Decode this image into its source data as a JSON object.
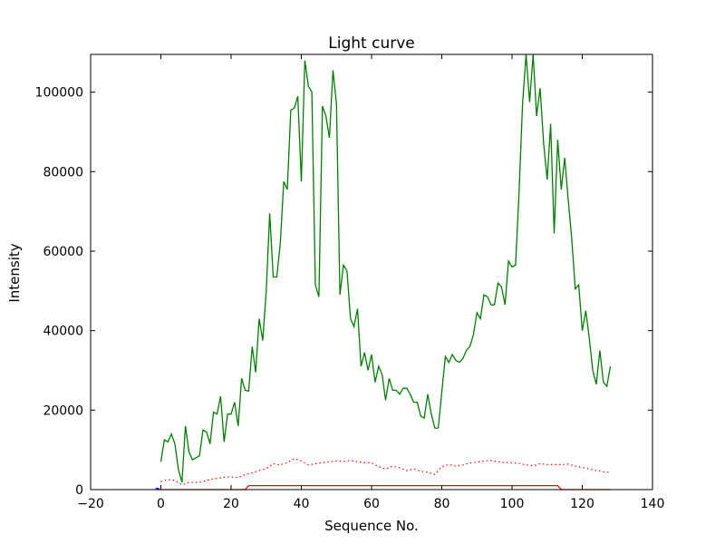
{
  "chart_data": {
    "type": "line",
    "title": "Light curve",
    "xlabel": "Sequence No.",
    "ylabel": "Intensity",
    "xlim": [
      -20,
      140
    ],
    "ylim": [
      0,
      109500
    ],
    "xticks": [
      -20,
      0,
      20,
      40,
      60,
      80,
      100,
      120,
      140
    ],
    "yticks": [
      0,
      20000,
      40000,
      60000,
      80000,
      100000
    ],
    "grid": false,
    "series": [
      {
        "color": "#008000",
        "style": "solid",
        "x": [
          0,
          1,
          2,
          3,
          4,
          5,
          6,
          7,
          8,
          9,
          10,
          11,
          12,
          13,
          14,
          15,
          16,
          17,
          18,
          19,
          20,
          21,
          22,
          23,
          24,
          25,
          26,
          27,
          28,
          29,
          30,
          31,
          32,
          33,
          34,
          35,
          36,
          37,
          38,
          39,
          40,
          41,
          42,
          43,
          44,
          45,
          46,
          47,
          48,
          49,
          50,
          51,
          52,
          53,
          54,
          55,
          56,
          57,
          58,
          59,
          60,
          61,
          62,
          63,
          64,
          65,
          66,
          67,
          68,
          69,
          70,
          71,
          72,
          73,
          74,
          75,
          76,
          77,
          78,
          79,
          80,
          81,
          82,
          83,
          84,
          85,
          86,
          87,
          88,
          89,
          90,
          91,
          92,
          93,
          94,
          95,
          96,
          97,
          98,
          99,
          100,
          101,
          102,
          103,
          104,
          105,
          106,
          107,
          108,
          109,
          110,
          111,
          112,
          113,
          114,
          115,
          116,
          117,
          118,
          119,
          120,
          121,
          122,
          123,
          124,
          125,
          126,
          127,
          128
        ],
        "y": [
          7000,
          12500,
          12000,
          14000,
          11500,
          5000,
          1800,
          16000,
          9500,
          7500,
          8000,
          8500,
          15000,
          14500,
          11500,
          19500,
          19000,
          23500,
          12000,
          19000,
          19000,
          22000,
          16000,
          28000,
          25000,
          24800,
          36000,
          29500,
          43000,
          37500,
          50000,
          69500,
          53500,
          53500,
          62000,
          77500,
          75500,
          95500,
          96000,
          99000,
          77500,
          108000,
          101500,
          100000,
          51500,
          48500,
          96500,
          94000,
          88500,
          105500,
          97000,
          49000,
          56500,
          55000,
          43000,
          41000,
          45500,
          31000,
          34500,
          30000,
          34000,
          27000,
          31000,
          29000,
          22500,
          28000,
          25000,
          25000,
          24000,
          25500,
          25500,
          24000,
          22000,
          22000,
          18500,
          18000,
          24000,
          19000,
          15500,
          15500,
          24500,
          33500,
          32000,
          34000,
          32500,
          32000,
          33000,
          35000,
          36000,
          39000,
          44500,
          43000,
          49000,
          48500,
          46500,
          46500,
          52000,
          51000,
          46500,
          57500,
          56000,
          56500,
          75000,
          97000,
          109500,
          97500,
          109500,
          94000,
          101000,
          87000,
          78000,
          92000,
          64500,
          88000,
          75500,
          83500,
          73000,
          63000,
          50500,
          51500,
          40000,
          45000,
          38000,
          30000,
          26500,
          35000,
          27000,
          26000,
          31000
        ]
      },
      {
        "color": "#ff0000",
        "style": "dotted",
        "x": [
          0,
          2,
          4,
          6,
          8,
          10,
          12,
          14,
          16,
          18,
          20,
          22,
          24,
          26,
          28,
          30,
          32,
          34,
          36,
          38,
          40,
          42,
          44,
          46,
          48,
          50,
          52,
          54,
          56,
          58,
          60,
          62,
          64,
          66,
          68,
          70,
          72,
          74,
          76,
          78,
          80,
          82,
          84,
          86,
          88,
          90,
          92,
          94,
          96,
          98,
          100,
          102,
          104,
          106,
          108,
          110,
          112,
          114,
          116,
          118,
          120,
          122,
          124,
          126,
          128
        ],
        "y": [
          2000,
          2500,
          2300,
          1200,
          1800,
          1800,
          2000,
          2600,
          2800,
          3100,
          3200,
          3000,
          3800,
          4200,
          4800,
          5300,
          6500,
          6200,
          6800,
          7800,
          7200,
          6200,
          6500,
          6800,
          7000,
          7200,
          7100,
          7300,
          7000,
          6800,
          6700,
          5800,
          5200,
          5900,
          5500,
          4800,
          5200,
          4600,
          4400,
          3800,
          5800,
          6300,
          5900,
          6200,
          6700,
          6900,
          7200,
          7300,
          7000,
          6800,
          6700,
          6600,
          6200,
          6000,
          6500,
          6300,
          6300,
          6300,
          6400,
          5900,
          5600,
          5200,
          4800,
          4500,
          4300
        ]
      },
      {
        "color": "#ff0000",
        "style": "solid",
        "x": [
          -1,
          24,
          25,
          113,
          114,
          128
        ],
        "y": [
          0,
          0,
          1000,
          1000,
          0,
          0
        ]
      },
      {
        "color": "#0000ff",
        "style": "solid",
        "x": [
          -1.5,
          -0.5
        ],
        "y": [
          300,
          300
        ]
      }
    ]
  }
}
